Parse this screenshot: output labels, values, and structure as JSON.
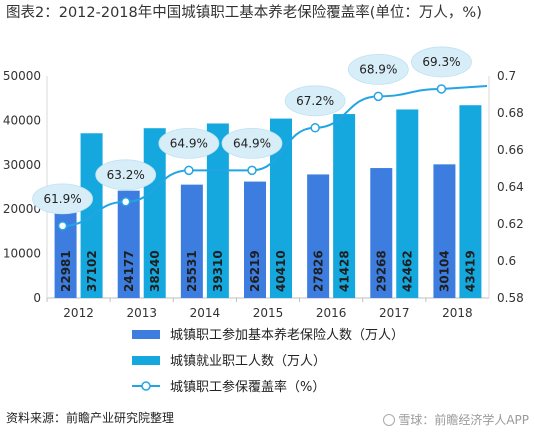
{
  "title": "图表2：2012-2018年中国城镇职工基本养老保险覆盖率(单位：万人，%)",
  "source": "资料来源：前瞻产业研究院整理",
  "watermark": "雪球：前瞻经济学人APP",
  "chart_data": {
    "type": "bar",
    "categories": [
      "2012",
      "2013",
      "2014",
      "2015",
      "2016",
      "2017",
      "2018"
    ],
    "series": [
      {
        "name": "城镇职工参加基本养老保险人数（万人）",
        "kind": "bar",
        "axis": "left",
        "color": "#3d7de0",
        "values": [
          22981,
          24177,
          25531,
          26219,
          27826,
          29268,
          30104
        ]
      },
      {
        "name": "城镇就业职工人数（万人）",
        "kind": "bar",
        "axis": "left",
        "color": "#14a8df",
        "values": [
          37102,
          38240,
          39310,
          40410,
          41428,
          42462,
          43419
        ]
      },
      {
        "name": "城镇职工参保覆盖率（%）",
        "kind": "line",
        "axis": "right",
        "color": "#23a4e3",
        "values": [
          0.619,
          0.632,
          0.649,
          0.649,
          0.672,
          0.689,
          0.693
        ],
        "labels": [
          "61.9%",
          "63.2%",
          "64.9%",
          "64.9%",
          "67.2%",
          "68.9%",
          "69.3%"
        ]
      }
    ],
    "y_left": {
      "min": 0,
      "max": 50000,
      "ticks": [
        "0",
        "10000",
        "20000",
        "30000",
        "40000",
        "50000"
      ]
    },
    "y_right": {
      "min": 0.58,
      "max": 0.7,
      "ticks": [
        "0.58",
        "0.6",
        "0.62",
        "0.64",
        "0.66",
        "0.68",
        "0.7"
      ]
    },
    "legend_position": "bottom",
    "grid": false
  }
}
